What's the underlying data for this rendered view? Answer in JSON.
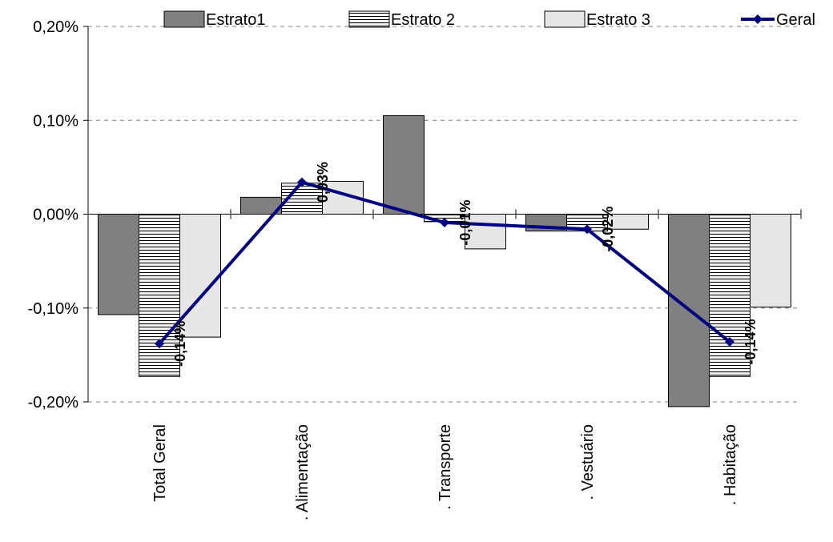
{
  "chart_data": {
    "type": "bar",
    "categories": [
      "Total Geral",
      ". Alimentação",
      ". Transporte",
      ". Vestuário",
      ". Habitação"
    ],
    "series": [
      {
        "name": "Estrato1",
        "kind": "bar",
        "values": [
          -0.107,
          0.018,
          0.105,
          -0.018,
          -0.205
        ],
        "color": "#808080"
      },
      {
        "name": "Estrato 2",
        "kind": "bar",
        "values": [
          -0.173,
          0.033,
          -0.008,
          -0.018,
          -0.173
        ],
        "color": "#f2f2f2"
      },
      {
        "name": "Estrato 3",
        "kind": "bar",
        "values": [
          -0.131,
          0.035,
          -0.037,
          -0.016,
          -0.099
        ],
        "color": "#e6e6e6"
      },
      {
        "name": "Geral",
        "kind": "line",
        "values": [
          -0.138,
          0.034,
          -0.009,
          -0.016,
          -0.136
        ],
        "color": "#000080"
      }
    ],
    "data_labels": [
      "-0,14%",
      "0,03%",
      "-0,01%",
      "-0,02%",
      "-0,14%"
    ],
    "y_ticks": [
      "0,20%",
      "0,10%",
      "0,00%",
      "-0,10%",
      "-0,20%"
    ],
    "ylim": [
      -0.2,
      0.2
    ],
    "grid": true,
    "legend_position": "top",
    "title": "",
    "xlabel": "",
    "ylabel": ""
  }
}
